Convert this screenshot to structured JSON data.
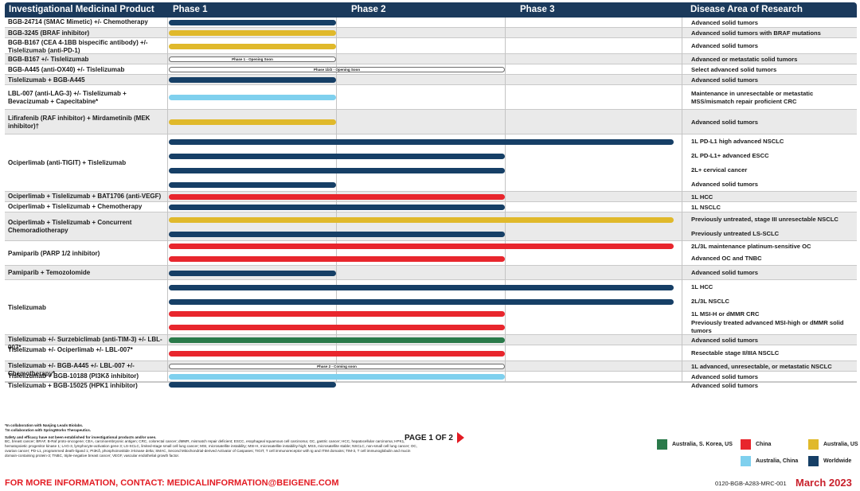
{
  "colors": {
    "header_bg": "#1b3a5c",
    "worldwide": "#163f66",
    "china": "#e8262d",
    "australia_us": "#e0b92b",
    "australia_china": "#7fd0ee",
    "australia_skorea_us": "#2a7a4a",
    "accent_red": "#e31b23"
  },
  "header": {
    "product": "Investigational Medicinal Product",
    "phase1": "Phase 1",
    "phase2": "Phase 2",
    "phase3": "Phase 3",
    "disease": "Disease Area of Research"
  },
  "pipeline": [
    {
      "product": "BGB-24714 (SMAC Mimetic) +/- Chemotherapy",
      "indications": [
        {
          "disease": "Advanced solid tumors",
          "phase": 1.0,
          "region": "worldwide"
        }
      ]
    },
    {
      "product": "BGB-3245 (BRAF inhibitor)",
      "indications": [
        {
          "disease": "Advanced solid tumors with BRAF mutations",
          "phase": 1.0,
          "region": "australia_us"
        }
      ]
    },
    {
      "product": "BGB-B167 (CEA 4-1BB bispecific antibody) +/- Tislelizumab (anti-PD-1)",
      "indications": [
        {
          "disease": "Advanced solid tumors",
          "phase": 1.0,
          "region": "australia_us"
        }
      ]
    },
    {
      "product": "BGB-B167 +/- Tislelizumab",
      "indications": [
        {
          "disease": "Advanced or metastatic solid tumors",
          "phase": 1.0,
          "pill": "Phase 1 - Opening Soon"
        }
      ]
    },
    {
      "product": "BGB-A445 (anti-OX40) +/- Tislelizumab",
      "indications": [
        {
          "disease": "Select advanced solid tumors",
          "phase": 2.0,
          "pill": "Phase 1b/2 - Opening Soon"
        }
      ]
    },
    {
      "product": "Tislelizumab + BGB-A445",
      "indications": [
        {
          "disease": "Advanced solid tumors",
          "phase": 1.0,
          "region": "worldwide"
        }
      ]
    },
    {
      "product": "LBL-007 (anti-LAG-3) +/- Tislelizumab + Bevacizumab + Capecitabine*",
      "indications": [
        {
          "disease": "Maintenance in unresectable or metastatic MSS/mismatch repair proficient CRC",
          "phase": 1.0,
          "region": "australia_china"
        }
      ]
    },
    {
      "product": "Lifirafenib (RAF inhibitor) + Mirdametinib (MEK inhibitor)†",
      "indications": [
        {
          "disease": "Advanced solid tumors",
          "phase": 1.0,
          "region": "australia_us"
        }
      ]
    },
    {
      "product": "Ociperlimab (anti-TIGIT) + Tislelizumab",
      "indications": [
        {
          "disease": "1L PD-L1 high advanced NSCLC",
          "phase": 3.0,
          "region": "worldwide"
        },
        {
          "disease": "2L PD-L1+ advanced ESCC",
          "phase": 2.0,
          "region": "worldwide"
        },
        {
          "disease": "2L+ cervical cancer",
          "phase": 2.0,
          "region": "worldwide"
        },
        {
          "disease": "Advanced solid tumors",
          "phase": 1.0,
          "region": "worldwide"
        }
      ]
    },
    {
      "product": "Ociperlimab + Tislelizumab + BAT1706 (anti-VEGF)",
      "indications": [
        {
          "disease": "1L HCC",
          "phase": 2.0,
          "region": "china"
        }
      ]
    },
    {
      "product": "Ociperlimab + Tislelizumab + Chemotherapy",
      "indications": [
        {
          "disease": "1L NSCLC",
          "phase": 2.0,
          "region": "worldwide"
        }
      ]
    },
    {
      "product": "Ociperlimab + Tislelizumab + Concurrent Chemoradiotherapy",
      "indications": [
        {
          "disease": "Previously untreated, stage III unresectable NSCLC",
          "phase": 3.0,
          "region": "australia_us"
        },
        {
          "disease": "Previously untreated LS-SCLC",
          "phase": 2.0,
          "region": "worldwide"
        }
      ]
    },
    {
      "product": "Pamiparib (PARP 1/2 inhibitor)",
      "indications": [
        {
          "disease": "2L/3L maintenance platinum-sensitive OC",
          "phase": 3.0,
          "region": "china"
        },
        {
          "disease": "Advanced OC and TNBC",
          "phase": 2.0,
          "region": "china"
        }
      ]
    },
    {
      "product": "Pamiparib + Temozolomide",
      "indications": [
        {
          "disease": "Advanced solid tumors",
          "phase": 1.0,
          "region": "worldwide"
        }
      ]
    },
    {
      "product": "Tislelizumab",
      "indications": [
        {
          "disease": "1L HCC",
          "phase": 3.0,
          "region": "worldwide"
        },
        {
          "disease": "2L/3L NSCLC",
          "phase": 3.0,
          "region": "worldwide"
        },
        {
          "disease": "1L MSI-H or dMMR CRC",
          "phase": 2.0,
          "region": "china"
        },
        {
          "disease": "Previously treated advanced MSI-high or dMMR solid tumors",
          "phase": 2.0,
          "region": "china"
        }
      ]
    },
    {
      "product": "Tislelizumab +/- Surzebiclimab (anti-TIM-3) +/- LBL-007*",
      "indications": [
        {
          "disease": "Advanced solid tumors",
          "phase": 2.0,
          "region": "australia_skorea_us"
        }
      ]
    },
    {
      "product": "Tislelizumab +/- Ociperlimab +/- LBL-007*",
      "indications": [
        {
          "disease": "Resectable stage II/IIIA NSCLC",
          "phase": 2.0,
          "region": "china"
        }
      ]
    },
    {
      "product": "Tislelizumab +/- BGB-A445 +/- LBL-007 +/- Chemotherapy*",
      "indications": [
        {
          "disease": "1L advanced, unresectable, or metastatic NSCLC",
          "phase": 2.0,
          "pill": "Phase 2 - Coming soon"
        }
      ]
    },
    {
      "product": "Tislelizumab + BGB-10188 (PI3Kδ inhibitor)",
      "indications": [
        {
          "disease": "Advanced solid tumors",
          "phase": 2.0,
          "region": "australia_china"
        }
      ]
    },
    {
      "product": "Tislelizumab + BGB-15025 (HPK1 inhibitor)",
      "indications": [
        {
          "disease": "Advanced solid tumors",
          "phase": 1.0,
          "region": "worldwide"
        }
      ]
    }
  ],
  "footnotes": {
    "n1": "*In collaboration with Nanjing Leads Biolabs.",
    "n2": "†In collaboration with SpringWorks Therapeutics.",
    "safety": "Safety and efficacy have not been established for investigational products and/or uses.",
    "abbrev": "BC, breast cancer; BRAF, B-Raf proto-oncogene; CEA, carcinoembryonic antigen; CRC, colorectal cancer; dMMR, mismatch repair deficient; ESCC, esophageal squamous cell carcinoma; GC, gastric cancer; HCC, hepatocellular carcinoma; HPK1, hematopoietic progenitor kinase 1; LAG-3, lymphocyte-activation gene 3; LS-SCLC, limited-stage small cell lung cancer; MSI, microsatellite instability; MSI-H, microsatellite instability-high; MSS, microsatellite stable; NSCLC, non-small cell lung cancer; OC, ovarian cancer; PD-L1, programmed death-ligand 1; PI3Kδ, phosphoinositide 3-kinase delta; SMAC, Second Mitochondrial-derived Activator of Caspases; TIGIT, T cell immunoreceptor with Ig and ITIM domains; TIM-3, T cell immunoglobulin and mucin domain-containing protein-3; TNBC, triple-negative breast cancer; VEGF, vascular endothelial growth factor."
  },
  "page_indicator": "PAGE 1 OF 2",
  "legend": {
    "australia_skorea_us": "Australia, S. Korea, US",
    "china": "China",
    "australia_us": "Australia, US",
    "australia_china": "Australia, China",
    "worldwide": "Worldwide"
  },
  "contact": "FOR MORE INFORMATION, CONTACT: MEDICALINFORMATION@BEIGENE.COM",
  "doc_number": "0120-BGB-A283-MRC-001",
  "date": "March 2023"
}
